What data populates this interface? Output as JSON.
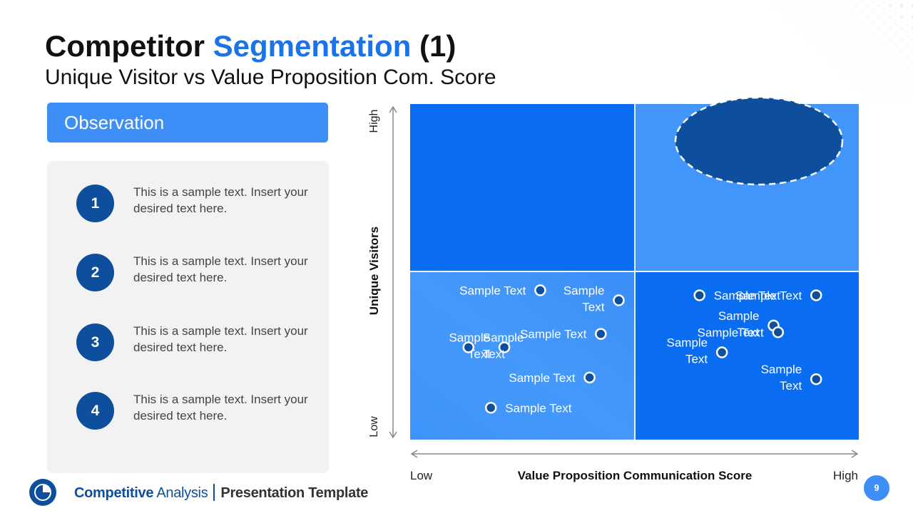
{
  "title": {
    "part1": "Competitor ",
    "part2": "Segmentation",
    "part3": " (1)"
  },
  "subtitle": "Unique Visitor vs Value Proposition Com. Score",
  "observation": {
    "header": "Observation",
    "items": [
      {
        "num": "1",
        "text": "This is a sample text. Insert your desired text here."
      },
      {
        "num": "2",
        "text": "This is a sample text. Insert your desired text here."
      },
      {
        "num": "3",
        "text": "This is a sample text. Insert your desired text here."
      },
      {
        "num": "4",
        "text": "This is a sample text. Insert your desired text here."
      }
    ]
  },
  "matrix": {
    "y_axis_label": "Unique Visitors",
    "y_high": "High",
    "y_low": "Low",
    "x_axis_label": "Value Proposition Communication Score",
    "x_low": "Low",
    "x_high": "High",
    "colors": {
      "dark": "#0a6cf0",
      "light": "#4296fb",
      "ellipse": "#0d4f9c"
    },
    "points": [
      {
        "label": [
          "Sample",
          "Text"
        ],
        "x": 0.93,
        "y": 0.83,
        "label_side": "left"
      },
      {
        "label": [
          "Sample Text"
        ],
        "x": 0.85,
        "y": 0.63,
        "label_side": "left"
      },
      {
        "label": [
          "Sample",
          "Text"
        ],
        "x": 0.42,
        "y": 0.55,
        "label_side": "left"
      },
      {
        "label": [
          "Sample Text"
        ],
        "x": 1.81,
        "y": 0.86,
        "label_side": "left"
      },
      {
        "label": [
          "Sample",
          "Text"
        ],
        "x": 1.62,
        "y": 0.68,
        "label_side": "left"
      },
      {
        "label": [
          "Sample",
          "Text"
        ],
        "x": 1.39,
        "y": 0.52,
        "label_side": "left"
      },
      {
        "label": [
          "Sample Text"
        ],
        "x": 0.58,
        "y": 0.89,
        "label_side": "left"
      },
      {
        "label": [
          "Sample",
          "Text"
        ],
        "x": 0.26,
        "y": 0.55,
        "label_side": "right"
      },
      {
        "label": [
          "Sample Text"
        ],
        "x": 0.8,
        "y": 0.37,
        "label_side": "left"
      },
      {
        "label": [
          "Sample Text"
        ],
        "x": 0.36,
        "y": 0.19,
        "label_side": "right"
      },
      {
        "label": [
          "Sample Text"
        ],
        "x": 1.29,
        "y": 0.86,
        "label_side": "right"
      },
      {
        "label": [
          "Sample Text"
        ],
        "x": 1.64,
        "y": 0.64,
        "label_side": "left"
      },
      {
        "label": [
          "Sample",
          "Text"
        ],
        "x": 1.81,
        "y": 0.36,
        "label_side": "left"
      }
    ]
  },
  "footer": {
    "brand_bold": "Competitive",
    "brand": "Analysis",
    "template": "Presentation Template",
    "page": "9"
  }
}
